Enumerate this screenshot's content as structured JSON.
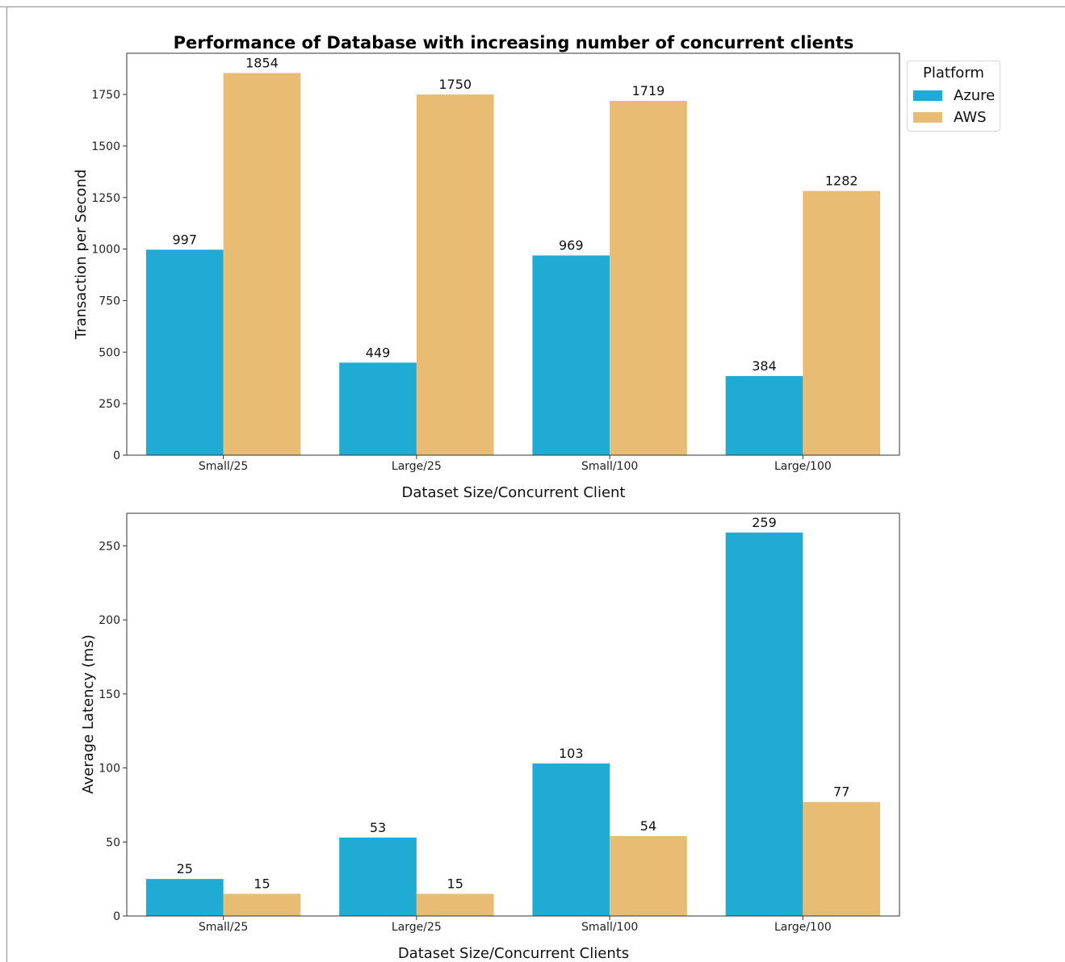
{
  "figure": {
    "title": "Performance of Database with increasing number of concurrent clients"
  },
  "legend": {
    "title": "Platform",
    "items": [
      {
        "label": "Azure",
        "color": "#1FABD4"
      },
      {
        "label": "AWS",
        "color": "#E8BC72"
      }
    ]
  },
  "chart_data": [
    {
      "type": "bar",
      "title": "Performance of Database with increasing number of concurrent clients",
      "categories": [
        "Small/25",
        "Large/25",
        "Small/100",
        "Large/100"
      ],
      "xlabel": "Dataset Size/Concurrent Client",
      "ylabel": "Transaction per Second",
      "ylim": [
        0,
        1950
      ],
      "yticks": [
        0,
        250,
        500,
        750,
        1000,
        1250,
        1500,
        1750
      ],
      "grid": false,
      "legend_position": "outside-top-right",
      "series": [
        {
          "name": "Azure",
          "color": "#1FABD4",
          "values": [
            997,
            449,
            969,
            384
          ]
        },
        {
          "name": "AWS",
          "color": "#E8BC72",
          "values": [
            1854,
            1750,
            1719,
            1282
          ]
        }
      ]
    },
    {
      "type": "bar",
      "categories": [
        "Small/25",
        "Large/25",
        "Small/100",
        "Large/100"
      ],
      "xlabel": "Dataset Size/Concurrent Clients",
      "ylabel": "Average Latency (ms)",
      "ylim": [
        0,
        272
      ],
      "yticks": [
        0,
        50,
        100,
        150,
        200,
        250
      ],
      "grid": false,
      "series": [
        {
          "name": "Azure",
          "color": "#1FABD4",
          "values": [
            25,
            53,
            103,
            259
          ]
        },
        {
          "name": "AWS",
          "color": "#E8BC72",
          "values": [
            15,
            15,
            54,
            77
          ]
        }
      ]
    }
  ]
}
